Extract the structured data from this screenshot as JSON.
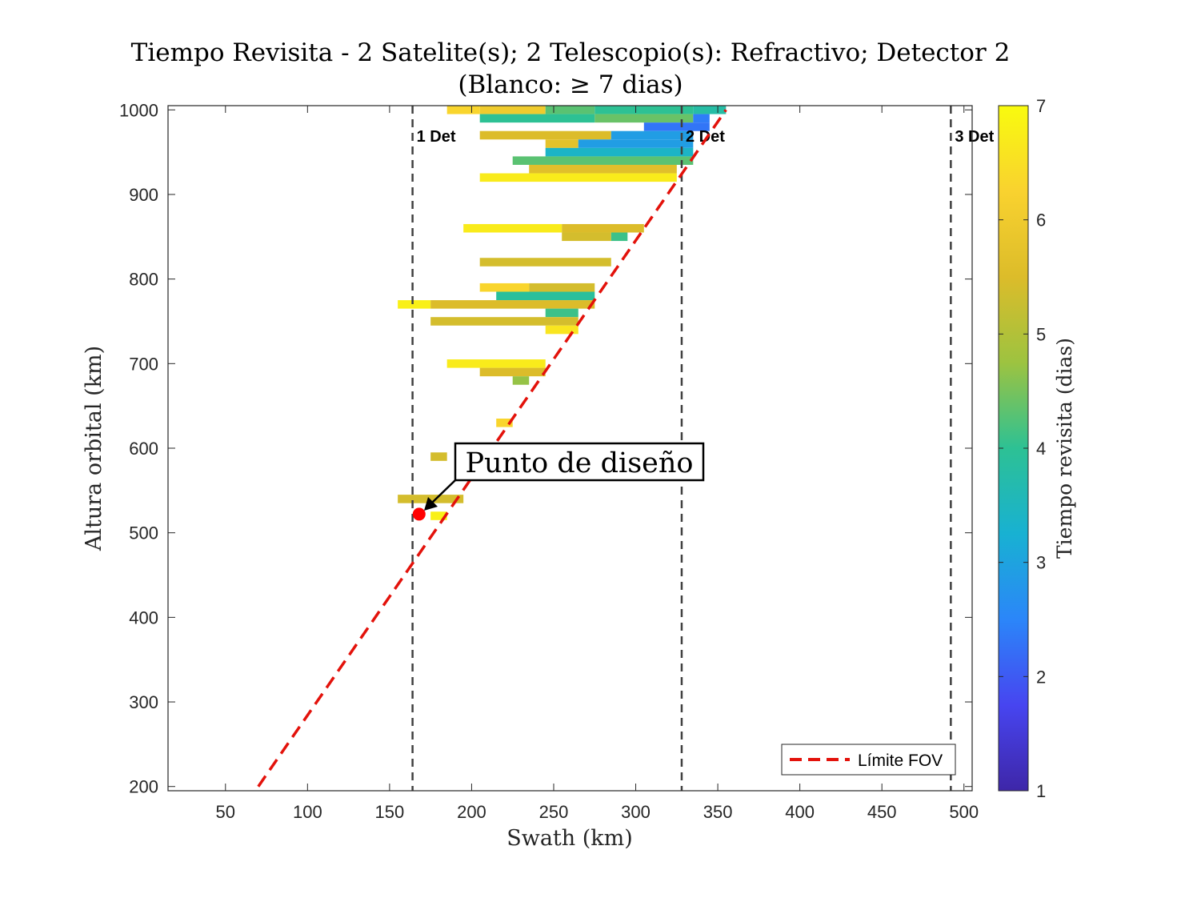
{
  "chart_data": {
    "type": "heatmap",
    "title_line1": "Tiempo Revisita - 2 Satelite(s); 2 Telescopio(s): Refractivo; Detector 2",
    "title_line2": "(Blanco: ≥ 7 dias)",
    "xlabel": "Swath (km)",
    "ylabel": "Altura orbital (km)",
    "xlim": [
      15,
      505
    ],
    "ylim": [
      195,
      1005
    ],
    "xticks": [
      50,
      100,
      150,
      200,
      250,
      300,
      350,
      400,
      450,
      500
    ],
    "yticks": [
      200,
      300,
      400,
      500,
      600,
      700,
      800,
      900,
      1000
    ],
    "colorbar": {
      "label": "Tiempo revisita (dias)",
      "limits": [
        1,
        7
      ],
      "ticks": [
        1,
        2,
        3,
        4,
        5,
        6,
        7
      ],
      "colormap": [
        "#3e26a8",
        "#4745f0",
        "#2b86f9",
        "#18b1d2",
        "#2dc194",
        "#9dc340",
        "#dcbc2a",
        "#f9d22f",
        "#f9fb0e"
      ]
    },
    "detector_lines": [
      {
        "x": 164,
        "label": "1 Det"
      },
      {
        "x": 328,
        "label": "2 Det"
      },
      {
        "x": 492,
        "label": "3 Det"
      }
    ],
    "fov_line": {
      "label": "Límite FOV",
      "color": "#e3120b",
      "x": [
        70,
        355
      ],
      "y": 200,
      "y_end": 1000
    },
    "design_point": {
      "x": 168,
      "y": 522,
      "label": "Punto de diseño",
      "color": "#ff0000"
    },
    "cells": [
      {
        "x0": 185,
        "x1": 205,
        "y": 1000,
        "v": 6.3
      },
      {
        "x0": 205,
        "x1": 245,
        "y": 1000,
        "v": 6.0
      },
      {
        "x0": 245,
        "x1": 275,
        "y": 1000,
        "v": 4.3
      },
      {
        "x0": 275,
        "x1": 335,
        "y": 1000,
        "v": 4.0
      },
      {
        "x0": 335,
        "x1": 355,
        "y": 1000,
        "v": 3.8
      },
      {
        "x0": 205,
        "x1": 275,
        "y": 990,
        "v": 4.0
      },
      {
        "x0": 275,
        "x1": 335,
        "y": 990,
        "v": 4.4
      },
      {
        "x0": 335,
        "x1": 345,
        "y": 990,
        "v": 2.4
      },
      {
        "x0": 305,
        "x1": 345,
        "y": 980,
        "v": 2.3
      },
      {
        "x0": 205,
        "x1": 285,
        "y": 970,
        "v": 5.5
      },
      {
        "x0": 285,
        "x1": 335,
        "y": 970,
        "v": 2.9
      },
      {
        "x0": 245,
        "x1": 265,
        "y": 960,
        "v": 5.7
      },
      {
        "x0": 265,
        "x1": 335,
        "y": 960,
        "v": 2.9
      },
      {
        "x0": 245,
        "x1": 335,
        "y": 950,
        "v": 3.4
      },
      {
        "x0": 225,
        "x1": 335,
        "y": 940,
        "v": 4.3
      },
      {
        "x0": 235,
        "x1": 325,
        "y": 930,
        "v": 5.6
      },
      {
        "x0": 205,
        "x1": 325,
        "y": 920,
        "v": 6.7
      },
      {
        "x0": 195,
        "x1": 255,
        "y": 860,
        "v": 6.7
      },
      {
        "x0": 255,
        "x1": 305,
        "y": 860,
        "v": 5.5
      },
      {
        "x0": 255,
        "x1": 285,
        "y": 850,
        "v": 5.4
      },
      {
        "x0": 285,
        "x1": 295,
        "y": 850,
        "v": 4.1
      },
      {
        "x0": 205,
        "x1": 285,
        "y": 820,
        "v": 5.4
      },
      {
        "x0": 205,
        "x1": 235,
        "y": 790,
        "v": 6.3
      },
      {
        "x0": 235,
        "x1": 275,
        "y": 790,
        "v": 5.4
      },
      {
        "x0": 215,
        "x1": 275,
        "y": 780,
        "v": 3.9
      },
      {
        "x0": 155,
        "x1": 175,
        "y": 770,
        "v": 6.8
      },
      {
        "x0": 175,
        "x1": 275,
        "y": 770,
        "v": 5.5
      },
      {
        "x0": 245,
        "x1": 265,
        "y": 760,
        "v": 4.1
      },
      {
        "x0": 175,
        "x1": 265,
        "y": 750,
        "v": 5.4
      },
      {
        "x0": 245,
        "x1": 265,
        "y": 740,
        "v": 6.6
      },
      {
        "x0": 185,
        "x1": 245,
        "y": 700,
        "v": 6.7
      },
      {
        "x0": 205,
        "x1": 245,
        "y": 690,
        "v": 5.5
      },
      {
        "x0": 225,
        "x1": 235,
        "y": 680,
        "v": 4.7
      },
      {
        "x0": 215,
        "x1": 225,
        "y": 630,
        "v": 6.3
      },
      {
        "x0": 175,
        "x1": 185,
        "y": 590,
        "v": 5.4
      },
      {
        "x0": 155,
        "x1": 195,
        "y": 540,
        "v": 5.4
      },
      {
        "x0": 175,
        "x1": 185,
        "y": 520,
        "v": 6.8
      }
    ]
  }
}
